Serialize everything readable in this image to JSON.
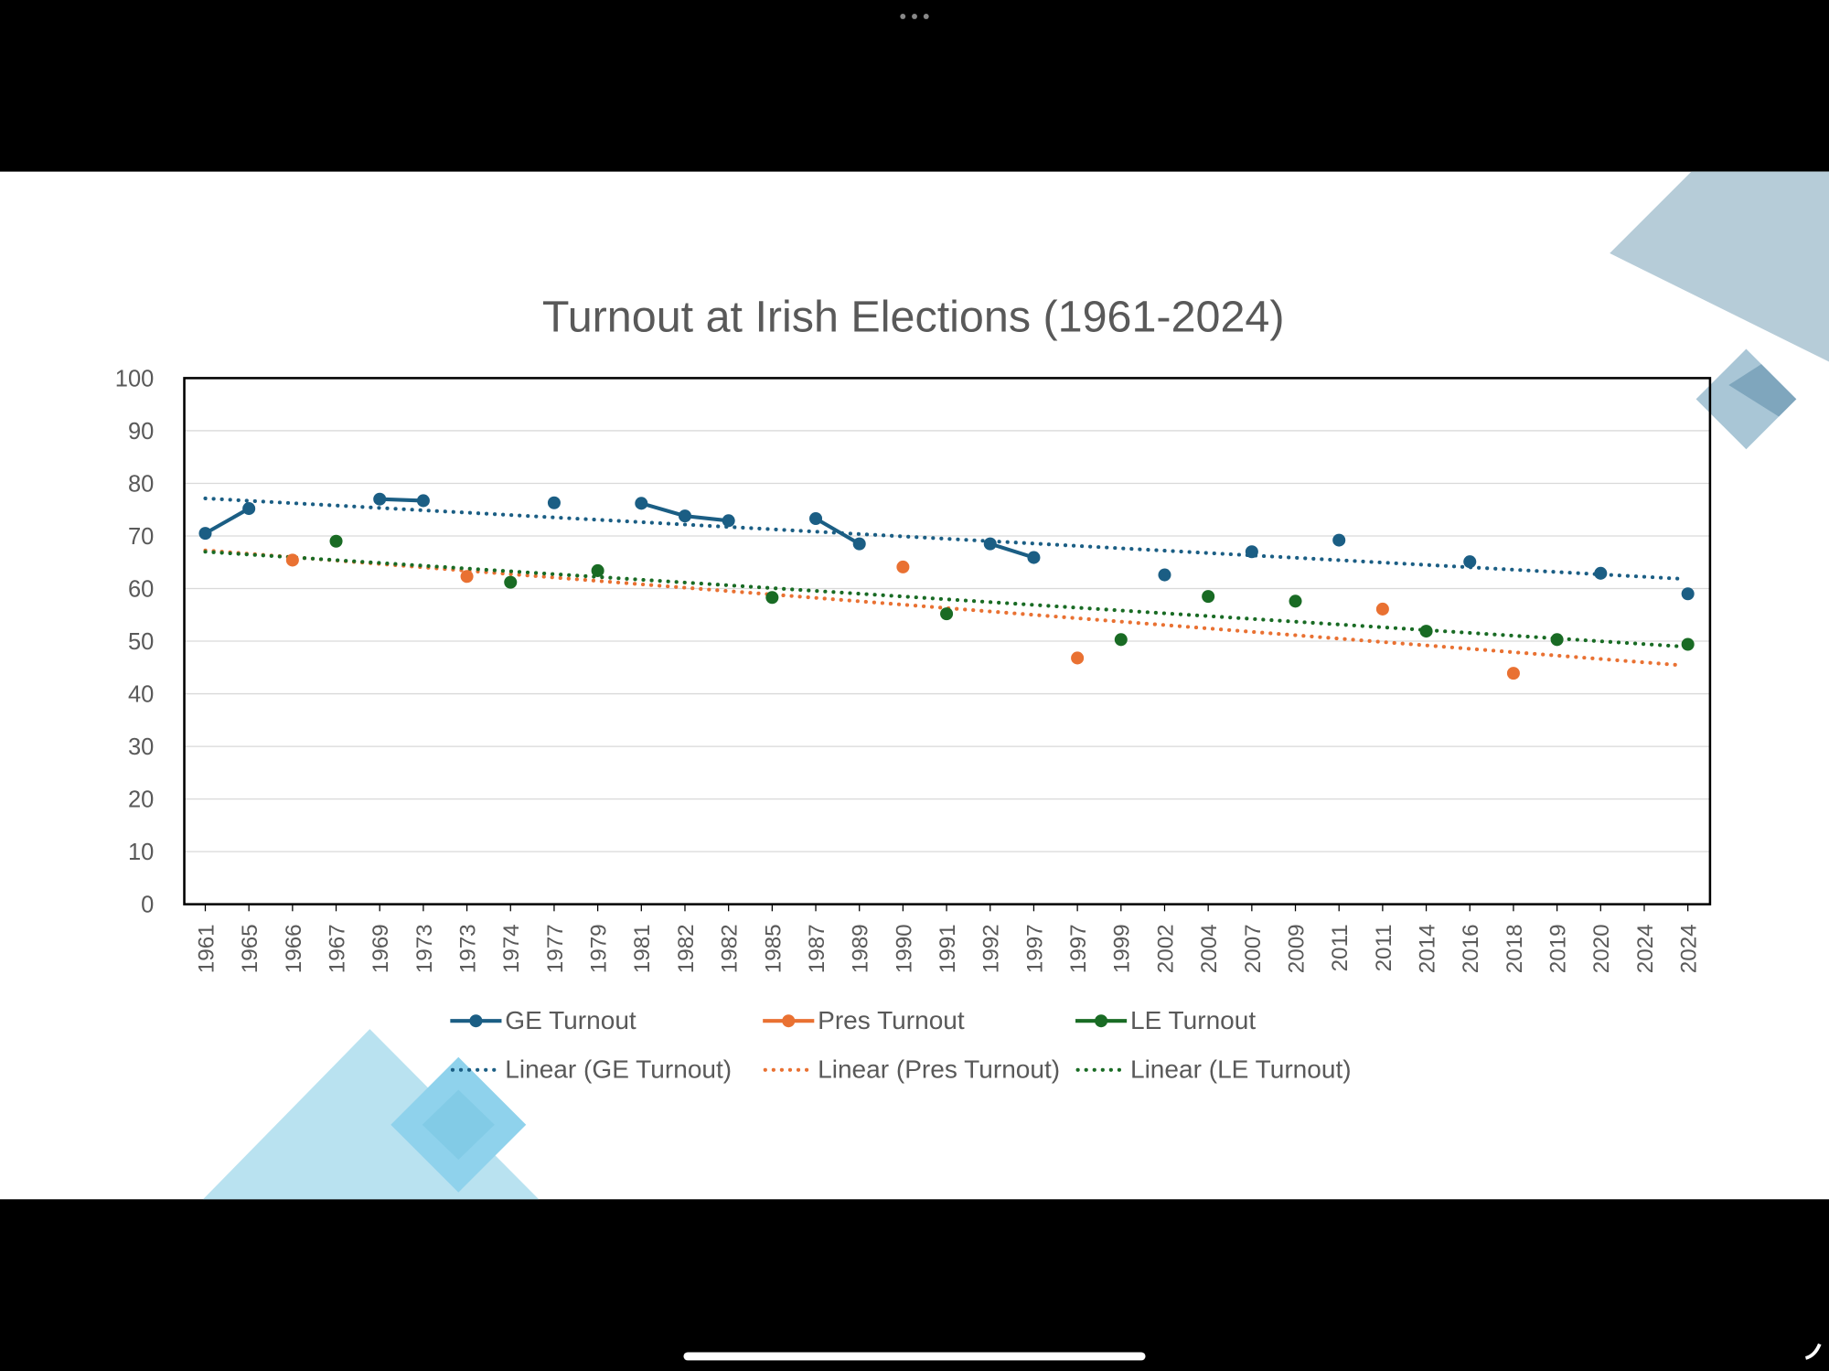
{
  "chart_data": {
    "type": "line",
    "title": "Turnout at Irish Elections (1961-2024)",
    "xlabel": "",
    "ylabel": "",
    "ylim": [
      0,
      100
    ],
    "yticks": [
      "0",
      "10",
      "20",
      "30",
      "40",
      "50",
      "60",
      "70",
      "80",
      "90",
      "100"
    ],
    "grid": true,
    "legend_position": "bottom",
    "categories": [
      "1961",
      "1965",
      "1966",
      "1967",
      "1969",
      "1973",
      "1973",
      "1974",
      "1977",
      "1979",
      "1981",
      "1982",
      "1982",
      "1985",
      "1987",
      "1989",
      "1990",
      "1991",
      "1992",
      "1997",
      "1997",
      "1999",
      "2002",
      "2004",
      "2007",
      "2009",
      "2011",
      "2011",
      "2014",
      "2016",
      "2018",
      "2019",
      "2020",
      "2024",
      "2024"
    ],
    "series": [
      {
        "name": "GE Turnout",
        "color": "#1b5e84",
        "values": [
          70.5,
          75.2,
          null,
          null,
          77.0,
          76.7,
          null,
          null,
          76.3,
          null,
          76.2,
          73.8,
          72.9,
          null,
          73.3,
          68.5,
          null,
          null,
          68.5,
          65.9,
          null,
          null,
          62.6,
          null,
          67.0,
          null,
          69.2,
          null,
          null,
          65.1,
          null,
          null,
          62.9,
          null,
          59.0
        ]
      },
      {
        "name": "Pres Turnout",
        "color": "#e97132",
        "values": [
          null,
          null,
          65.4,
          null,
          null,
          null,
          62.3,
          null,
          null,
          null,
          null,
          null,
          null,
          null,
          null,
          null,
          64.1,
          null,
          null,
          null,
          46.8,
          null,
          null,
          null,
          null,
          null,
          null,
          56.1,
          null,
          null,
          43.9,
          null,
          null,
          null,
          null
        ]
      },
      {
        "name": "LE Turnout",
        "color": "#196b24",
        "values": [
          null,
          null,
          null,
          69.0,
          null,
          null,
          null,
          61.2,
          null,
          63.4,
          null,
          null,
          null,
          58.3,
          null,
          null,
          null,
          55.2,
          null,
          null,
          null,
          50.3,
          null,
          58.5,
          null,
          57.6,
          null,
          null,
          51.9,
          null,
          null,
          50.3,
          null,
          null,
          49.4
        ]
      }
    ],
    "trendlines": [
      {
        "name": "Linear (GE Turnout)",
        "of": "GE Turnout",
        "type": "linear",
        "color": "#1b5e84"
      },
      {
        "name": "Linear (Pres Turnout)",
        "of": "Pres Turnout",
        "type": "linear",
        "color": "#e97132"
      },
      {
        "name": "Linear (LE Turnout)",
        "of": "LE Turnout",
        "type": "linear",
        "color": "#196b24"
      }
    ]
  }
}
